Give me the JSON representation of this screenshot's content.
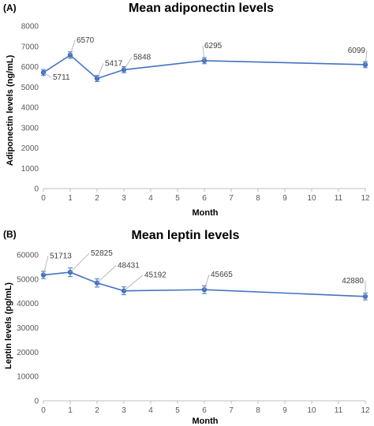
{
  "colors": {
    "series": "#4472c4",
    "axis": "#bfbfbf",
    "tick_text": "#595959"
  },
  "chart_data": [
    {
      "type": "line",
      "panel": "(A)",
      "title": "Mean adiponectin levels",
      "xlabel": "Month",
      "ylabel": "Adiponectin levels (ng/mL)",
      "xlim": [
        0,
        12
      ],
      "ylim": [
        0,
        8000
      ],
      "x_ticks": [
        0,
        1,
        2,
        3,
        4,
        5,
        6,
        7,
        8,
        9,
        10,
        11,
        12
      ],
      "y_ticks": [
        0,
        1000,
        2000,
        3000,
        4000,
        5000,
        6000,
        7000,
        8000
      ],
      "grid": false,
      "series": [
        {
          "x": [
            0,
            1,
            2,
            3,
            6,
            12
          ],
          "y": [
            5711,
            6570,
            5417,
            5848,
            6295,
            6099
          ],
          "error": [
            150,
            160,
            150,
            150,
            150,
            150
          ],
          "labels": [
            "5711",
            "6570",
            "5417",
            "5848",
            "6295",
            "6099"
          ]
        }
      ]
    },
    {
      "type": "line",
      "panel": "(B)",
      "title": "Mean leptin levels",
      "xlabel": "Month",
      "ylabel": "Leptin levels (pg/mL)",
      "xlim": [
        0,
        12
      ],
      "ylim": [
        0,
        60000
      ],
      "x_ticks": [
        0,
        1,
        2,
        3,
        4,
        5,
        6,
        7,
        8,
        9,
        10,
        11,
        12
      ],
      "y_ticks": [
        0,
        10000,
        20000,
        30000,
        40000,
        50000,
        60000
      ],
      "grid": false,
      "series": [
        {
          "x": [
            0,
            1,
            2,
            3,
            6,
            12
          ],
          "y": [
            51713,
            52825,
            48431,
            45192,
            45665,
            42880
          ],
          "error": [
            1500,
            1800,
            1700,
            1600,
            1600,
            1400
          ],
          "labels": [
            "51713",
            "52825",
            "48431",
            "45192",
            "45665",
            "42880"
          ]
        }
      ]
    }
  ]
}
